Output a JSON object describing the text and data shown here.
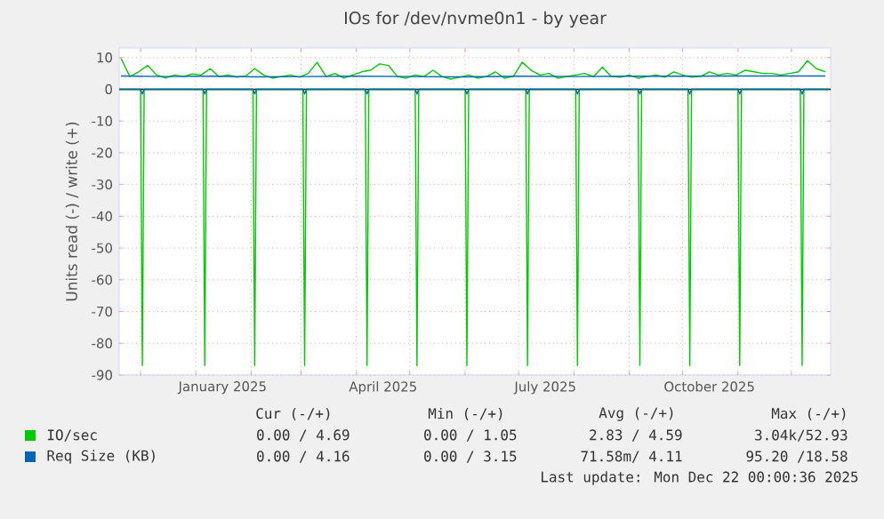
{
  "chart_data": {
    "type": "line",
    "title": "IOs for /dev/nvme0n1 - by year",
    "ylabel": "Units read (-) / write (+)",
    "xlim": [
      "2024-11-19",
      "2025-12-23"
    ],
    "ylim": [
      -90,
      13
    ],
    "xticks": [
      {
        "value": "2024-12-01",
        "label": null
      },
      {
        "value": "2025-01-01",
        "label": null
      },
      {
        "value": "2025-01-16",
        "label": "January 2025"
      },
      {
        "value": "2025-02-01",
        "label": null
      },
      {
        "value": "2025-03-01",
        "label": null
      },
      {
        "value": "2025-04-01",
        "label": null
      },
      {
        "value": "2025-04-16",
        "label": "April 2025"
      },
      {
        "value": "2025-05-01",
        "label": null
      },
      {
        "value": "2025-06-01",
        "label": null
      },
      {
        "value": "2025-07-01",
        "label": null
      },
      {
        "value": "2025-07-16",
        "label": "July 2025"
      },
      {
        "value": "2025-08-01",
        "label": null
      },
      {
        "value": "2025-09-01",
        "label": null
      },
      {
        "value": "2025-10-01",
        "label": null
      },
      {
        "value": "2025-10-16",
        "label": "October 2025"
      },
      {
        "value": "2025-11-01",
        "label": null
      },
      {
        "value": "2025-12-01",
        "label": null
      }
    ],
    "yticks": [
      10,
      0,
      -10,
      -20,
      -30,
      -40,
      -50,
      -60,
      -70,
      -80,
      -90
    ],
    "grid": true,
    "legend": "bottom",
    "marker": "none",
    "ref_lines": [
      {
        "axis": "y",
        "value": 0,
        "color": "#000000"
      }
    ],
    "series": [
      {
        "name": "IO/sec",
        "color": "#00cc00",
        "x": [
          "2024-11-20",
          "2024-11-25",
          "2024-11-30",
          "2024-12-05",
          "2024-12-10",
          "2024-12-15",
          "2024-12-20",
          "2024-12-25",
          "2024-12-30",
          "2025-01-04",
          "2025-01-09",
          "2025-01-14",
          "2025-01-19",
          "2025-01-24",
          "2025-01-29",
          "2025-02-03",
          "2025-02-08",
          "2025-02-13",
          "2025-02-18",
          "2025-02-23",
          "2025-02-28",
          "2025-03-05",
          "2025-03-10",
          "2025-03-15",
          "2025-03-20",
          "2025-03-25",
          "2025-03-30",
          "2025-04-04",
          "2025-04-09",
          "2025-04-14",
          "2025-04-19",
          "2025-04-24",
          "2025-04-29",
          "2025-05-04",
          "2025-05-09",
          "2025-05-14",
          "2025-05-19",
          "2025-05-24",
          "2025-05-29",
          "2025-06-03",
          "2025-06-08",
          "2025-06-13",
          "2025-06-18",
          "2025-06-23",
          "2025-06-28",
          "2025-07-03",
          "2025-07-08",
          "2025-07-13",
          "2025-07-18",
          "2025-07-23",
          "2025-07-28",
          "2025-08-02",
          "2025-08-07",
          "2025-08-12",
          "2025-08-17",
          "2025-08-22",
          "2025-08-27",
          "2025-09-01",
          "2025-09-06",
          "2025-09-11",
          "2025-09-16",
          "2025-09-21",
          "2025-09-26",
          "2025-10-01",
          "2025-10-06",
          "2025-10-11",
          "2025-10-16",
          "2025-10-21",
          "2025-10-26",
          "2025-10-31",
          "2025-11-05",
          "2025-11-10",
          "2025-11-15",
          "2025-11-20",
          "2025-11-25",
          "2025-11-30",
          "2025-12-05",
          "2025-12-10",
          "2025-12-15",
          "2025-12-20"
        ],
        "values": [
          9.8,
          4,
          5.5,
          7.5,
          4.5,
          3.5,
          4.5,
          4,
          4.8,
          4.5,
          6.5,
          4,
          4.5,
          3.8,
          4.2,
          6.5,
          4.5,
          3.5,
          4,
          4.5,
          3.8,
          5,
          8.5,
          4,
          5,
          3.5,
          4.5,
          5.5,
          6,
          8,
          7.5,
          4,
          3.5,
          4.5,
          4,
          6,
          4,
          3.2,
          3.8,
          4.5,
          3.5,
          4,
          5.5,
          3.5,
          4,
          8.5,
          6,
          4.5,
          5,
          3.5,
          4,
          4.5,
          5,
          4,
          7,
          4,
          3.8,
          4.5,
          3.5,
          4,
          4.5,
          3.8,
          5.5,
          4.5,
          3.8,
          4,
          5.5,
          4.5,
          5,
          4.5,
          6,
          5.5,
          5,
          5,
          4.5,
          5,
          5.5,
          9,
          6.5,
          5.5
        ]
      },
      {
        "color": "#00cc00",
        "x": [
          "2024-11-19",
          "2024-12-01",
          "2024-12-02",
          "2024-12-03",
          "2025-01-05",
          "2025-01-06",
          "2025-01-07",
          "2025-02-02",
          "2025-02-03",
          "2025-02-04",
          "2025-03-02",
          "2025-03-03",
          "2025-03-04",
          "2025-04-06",
          "2025-04-07",
          "2025-04-08",
          "2025-05-04",
          "2025-05-05",
          "2025-05-06",
          "2025-06-01",
          "2025-06-02",
          "2025-06-03",
          "2025-07-05",
          "2025-07-06",
          "2025-07-07",
          "2025-08-02",
          "2025-08-03",
          "2025-08-04",
          "2025-09-06",
          "2025-09-07",
          "2025-09-08",
          "2025-10-04",
          "2025-10-05",
          "2025-10-06",
          "2025-11-01",
          "2025-11-02",
          "2025-11-03",
          "2025-12-06",
          "2025-12-07",
          "2025-12-08",
          "2025-12-22"
        ],
        "values": [
          0,
          0,
          -87,
          0,
          0,
          -87,
          0,
          0,
          -87,
          0,
          0,
          -87,
          0,
          0,
          -87,
          0,
          0,
          -87,
          0,
          0,
          -87,
          0,
          0,
          -87,
          0,
          0,
          -87,
          0,
          0,
          -87,
          0,
          0,
          -87,
          0,
          0,
          -87,
          0,
          0,
          -87,
          0,
          0
        ]
      },
      {
        "name": "Req Size (KB)",
        "color": "#0066b3",
        "x": [
          "2024-11-20",
          "2024-12-15",
          "2025-01-10",
          "2025-02-05",
          "2025-03-05",
          "2025-04-01",
          "2025-05-01",
          "2025-06-01",
          "2025-07-01",
          "2025-08-01",
          "2025-09-01",
          "2025-10-01",
          "2025-11-01",
          "2025-12-01",
          "2025-12-20"
        ],
        "values": [
          4.2,
          4.0,
          4.1,
          3.9,
          4.0,
          4.1,
          4.0,
          3.9,
          4.1,
          4.0,
          4.1,
          4.1,
          4.2,
          4.2,
          4.2
        ]
      },
      {
        "color": "#0066b3",
        "x": [
          "2024-11-19",
          "2024-12-01",
          "2024-12-02",
          "2024-12-03",
          "2025-01-05",
          "2025-01-06",
          "2025-01-07",
          "2025-02-02",
          "2025-02-03",
          "2025-02-04",
          "2025-03-02",
          "2025-03-03",
          "2025-03-04",
          "2025-04-06",
          "2025-04-07",
          "2025-04-08",
          "2025-05-04",
          "2025-05-05",
          "2025-05-06",
          "2025-06-01",
          "2025-06-02",
          "2025-06-03",
          "2025-07-05",
          "2025-07-06",
          "2025-07-07",
          "2025-08-02",
          "2025-08-03",
          "2025-08-04",
          "2025-09-06",
          "2025-09-07",
          "2025-09-08",
          "2025-10-04",
          "2025-10-05",
          "2025-10-06",
          "2025-11-01",
          "2025-11-02",
          "2025-11-03",
          "2025-12-06",
          "2025-12-07",
          "2025-12-08",
          "2025-12-22"
        ],
        "values": [
          0,
          0,
          -1.5,
          0,
          0,
          -1.5,
          0,
          0,
          -1.5,
          0,
          0,
          -1.5,
          0,
          0,
          -1.5,
          0,
          0,
          -1.5,
          0,
          0,
          -1.5,
          0,
          0,
          -1.5,
          0,
          0,
          -1.5,
          0,
          0,
          -1.5,
          0,
          0,
          -1.5,
          0,
          0,
          -1.5,
          0,
          0,
          -1.5,
          0,
          0
        ]
      }
    ],
    "annotations": [
      "Cur (-/+)",
      "Min (-/+)",
      "Avg (-/+)",
      "Max (-/+)",
      "0.00 / 4.69",
      "0.00 / 1.05",
      "2.83 / 4.59",
      "3.04k/52.93",
      "0.00 / 4.16",
      "0.00 / 3.15",
      "71.58m/ 4.11",
      "95.20 /18.58",
      "Last update: Mon Dec 22 00:00:36 2025"
    ]
  }
}
